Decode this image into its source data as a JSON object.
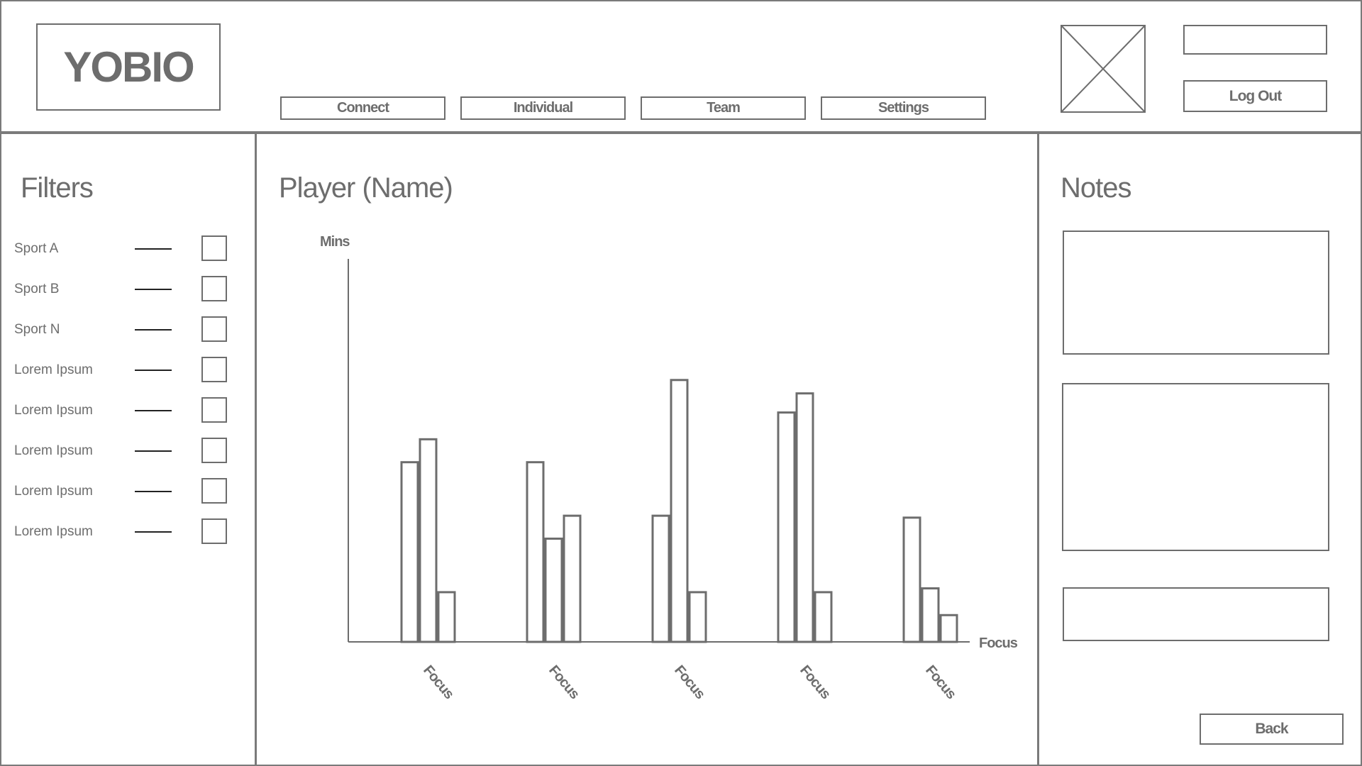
{
  "header": {
    "logo_text": "YOBIO",
    "nav": [
      {
        "label": "Connect"
      },
      {
        "label": "Individual"
      },
      {
        "label": "Team"
      },
      {
        "label": "Settings"
      }
    ],
    "top_field_value": "",
    "logout_label": "Log Out",
    "avatar_icon": "image-placeholder-icon"
  },
  "filters": {
    "title": "Filters",
    "items": [
      {
        "label": "Sport A"
      },
      {
        "label": "Sport B"
      },
      {
        "label": "Sport N"
      },
      {
        "label": "Lorem Ipsum"
      },
      {
        "label": "Lorem Ipsum"
      },
      {
        "label": "Lorem Ipsum"
      },
      {
        "label": "Lorem Ipsum"
      },
      {
        "label": "Lorem Ipsum"
      }
    ]
  },
  "main": {
    "title": "Player (Name)"
  },
  "chart_data": {
    "type": "bar",
    "categories": [
      "Focus",
      "Focus",
      "Focus",
      "Focus",
      "Focus"
    ],
    "series": [
      {
        "values": [
          47,
          47,
          33,
          60,
          32.5
        ]
      },
      {
        "values": [
          53,
          27,
          68.5,
          65,
          14
        ]
      },
      {
        "values": [
          13,
          33,
          13,
          13,
          7
        ]
      }
    ],
    "xlabel": "Focus",
    "ylabel": "Mins",
    "ylim": [
      0,
      100
    ],
    "grid": false,
    "legend": "none"
  },
  "notes": {
    "title": "Notes"
  },
  "footer": {
    "back_label": "Back"
  }
}
